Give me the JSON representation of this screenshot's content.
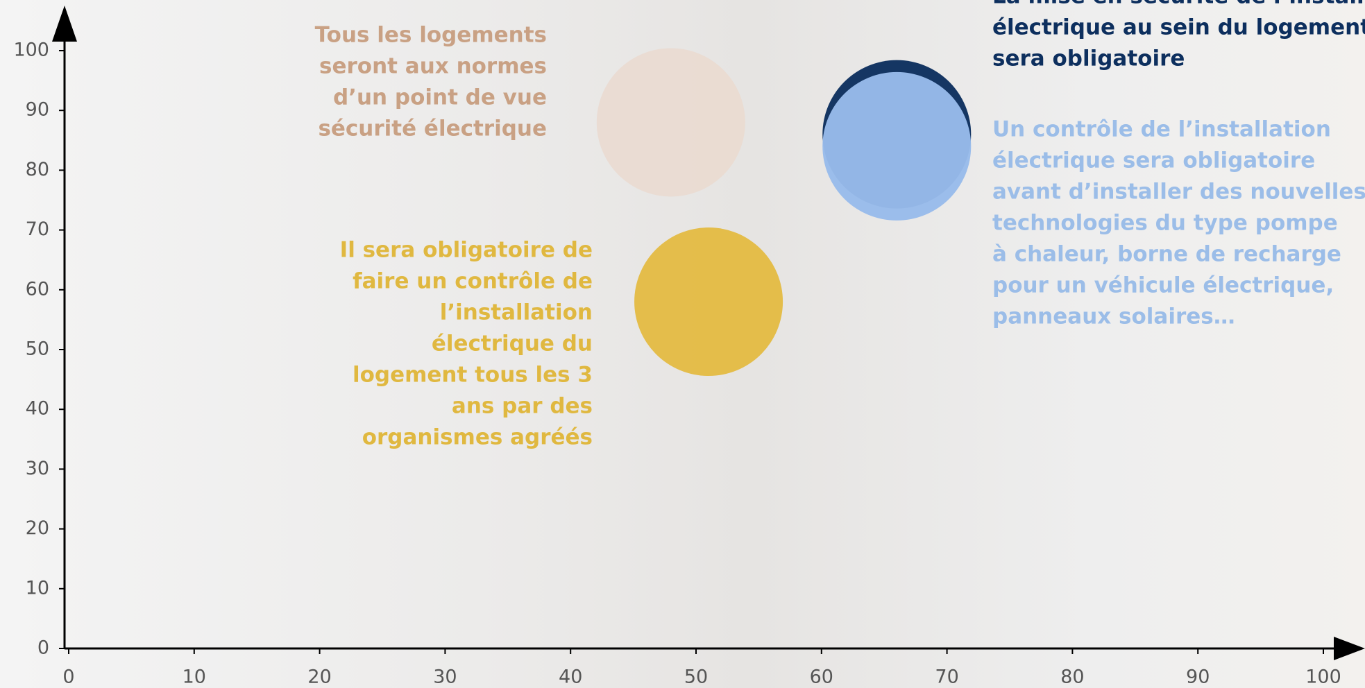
{
  "chart_data": {
    "type": "scatter",
    "series": [
      {
        "color": "#e9dbd2",
        "x": [
          48
        ],
        "values": [
          88
        ]
      },
      {
        "color": "#e3bb45",
        "x": [
          51
        ],
        "values": [
          58
        ]
      },
      {
        "color": "#0d2f5e",
        "x": [
          66
        ],
        "values": [
          86
        ]
      },
      {
        "color": "#98bbea",
        "x": [
          66
        ],
        "values": [
          84
        ]
      }
    ],
    "xlim": [
      0,
      100
    ],
    "xticks": [
      0,
      10,
      20,
      30,
      40,
      50,
      60,
      70,
      80,
      90,
      100
    ],
    "ylim": [
      0,
      100
    ],
    "yticks": [
      0,
      10,
      20,
      30,
      40,
      50,
      60,
      70,
      80,
      90,
      100
    ],
    "annotations": [
      {
        "color": "#c9a184",
        "lines": [
          "Tous les logements",
          "seront aux normes",
          "d’un point de vue",
          "sécurité électrique"
        ]
      },
      {
        "color": "#e0b840",
        "lines": [
          "Il sera obligatoire de",
          "faire un contrôle de",
          "l’installation",
          "électrique du",
          "logement tous les 3",
          "ans par des",
          "organismes agréés"
        ]
      },
      {
        "color": "#0d2f5e",
        "lines": [
          "La mise en sécurité de l’installation",
          "électrique au sein du logement",
          "sera obligatoire"
        ]
      },
      {
        "color": "#9bbde8",
        "lines": [
          "Un contrôle de l’installation",
          "électrique sera obligatoire",
          "avant d’installer des nouvelles",
          "technologies du type pompe",
          "à chaleur, borne de recharge",
          "pour un véhicule électrique,",
          "panneaux solaires…"
        ]
      }
    ]
  }
}
